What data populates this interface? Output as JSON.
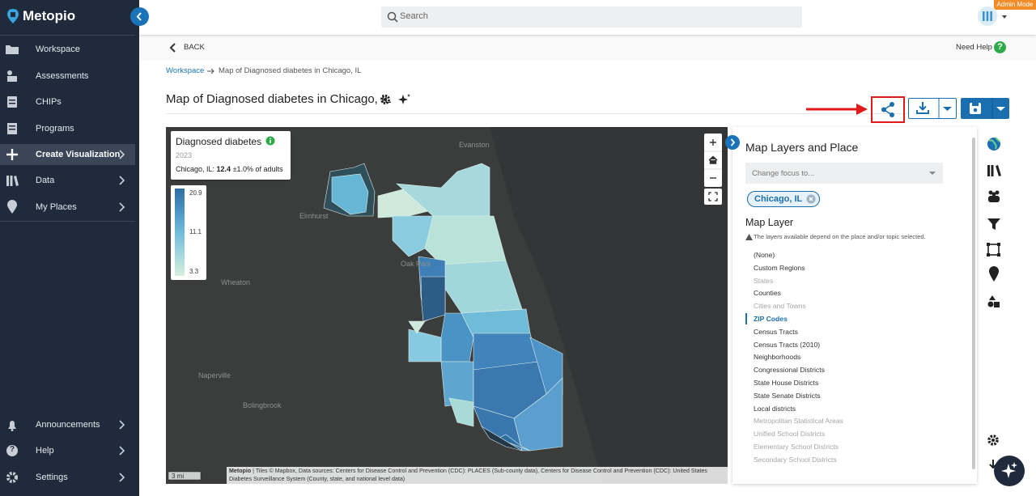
{
  "sidebar": {
    "brand": "Metopio",
    "nav": [
      {
        "label": "Workspace"
      },
      {
        "label": "Assessments"
      },
      {
        "label": "CHIPs"
      },
      {
        "label": "Programs"
      },
      {
        "label": "Create Visualization",
        "submenu": true,
        "active": true
      },
      {
        "label": "Data",
        "submenu": true
      },
      {
        "label": "My Places",
        "submenu": true
      }
    ],
    "bottom_nav": [
      {
        "label": "Announcements",
        "submenu": true
      },
      {
        "label": "Help",
        "submenu": true
      },
      {
        "label": "Settings",
        "submenu": true
      }
    ]
  },
  "topbar": {
    "search_placeholder": "Search",
    "badge": "Admin Mode"
  },
  "subbar": {
    "back": "BACK",
    "help": "Need Help",
    "help_icon": "?"
  },
  "breadcrumb": {
    "root": "Workspace",
    "current": "Map of Diagnosed diabetes in Chicago, IL"
  },
  "title": "Map of Diagnosed diabetes in Chicago, IL",
  "map": {
    "legend": {
      "title": "Diagnosed diabetes",
      "year": "2023",
      "place": "Chicago, IL:",
      "value": "12.4",
      "range": "±1.0% of adults",
      "scale": [
        "20.9",
        "11.1",
        "3.3"
      ]
    },
    "labels": [
      "Evanston",
      "Elmhurst",
      "Oak Park",
      "Wheaton",
      "Naperville",
      "Bolingbrook"
    ],
    "scale_bar": "3 mi",
    "attribution_source": "Metopio",
    "attribution": "| Tiles © Mapbox, Data sources: Centers for Disease Control and Prevention (CDC): PLACES (Sub-county data), Centers for Disease Control and Prevention (CDC): United States Diabetes Surveillance System (County, state, and national level data)"
  },
  "panel": {
    "title": "Map Layers and Place",
    "focus_placeholder": "Change focus to...",
    "chip": "Chicago, IL",
    "layer_heading": "Map Layer",
    "note": "The layers available depend on the place and/or topic selected.",
    "layers": [
      {
        "label": "(None)",
        "available": true
      },
      {
        "label": "Custom Regions",
        "available": true
      },
      {
        "label": "States",
        "available": false
      },
      {
        "label": "Counties",
        "available": true
      },
      {
        "label": "Cities and Towns",
        "available": false
      },
      {
        "label": "ZIP Codes",
        "available": true,
        "selected": true
      },
      {
        "label": "Census Tracts",
        "available": true
      },
      {
        "label": "Census Tracts (2010)",
        "available": true
      },
      {
        "label": "Neighborhoods",
        "available": true
      },
      {
        "label": "Congressional Districts",
        "available": true
      },
      {
        "label": "State House Districts",
        "available": true
      },
      {
        "label": "State Senate Districts",
        "available": true
      },
      {
        "label": "Local districts",
        "available": true
      },
      {
        "label": "Metropolitan Statistical Areas",
        "available": false
      },
      {
        "label": "Unified School Districts",
        "available": false
      },
      {
        "label": "Elementary School Districts",
        "available": false
      },
      {
        "label": "Secondary School Districts",
        "available": false
      }
    ]
  }
}
